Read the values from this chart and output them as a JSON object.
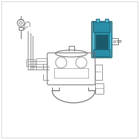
{
  "bg_color": "#f5f5f5",
  "border_color": "#d0d0d0",
  "highlight_fill": "#4bbdd4",
  "highlight_dark": "#2a8ea8",
  "highlight_darker": "#1a5a6a",
  "highlight_border": "#1a5a6a",
  "line_color": "#909090",
  "mid_line": "#707070",
  "dark_line": "#505050",
  "fig_size": [
    2.0,
    2.0
  ],
  "dpi": 100,
  "white": "#ffffff"
}
